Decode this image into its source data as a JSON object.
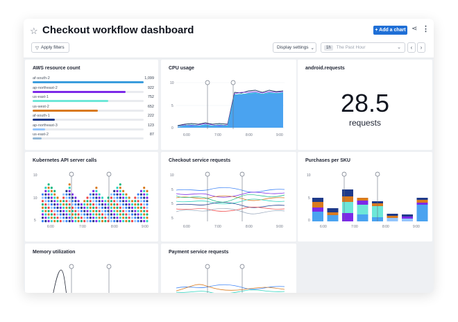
{
  "header": {
    "title": "Checkout workflow dashboard",
    "add_chart_label": "+ Add a chart",
    "apply_filters_label": "Apply filters",
    "display_settings_label": "Display settings",
    "time_badge": "1h",
    "time_range": "The Past Hour"
  },
  "icons": [
    "star-icon",
    "share-icon",
    "more-icon",
    "filter-icon",
    "chevron-down-icon",
    "chevron-left-icon",
    "chevron-right-icon"
  ],
  "aws": {
    "title": "AWS resource count",
    "items": [
      {
        "name": "af-south-2",
        "value": "1,099",
        "color": "#3b9ddd",
        "frac": 1.0
      },
      {
        "name": "ap-northeast-2",
        "value": "922",
        "color": "#7c2ae8",
        "frac": 0.84
      },
      {
        "name": "us-east-1",
        "value": "752",
        "color": "#6ee7d8",
        "frac": 0.68
      },
      {
        "name": "us-west-2",
        "value": "652",
        "color": "#d97a1e",
        "frac": 0.59
      },
      {
        "name": "af-south-1",
        "value": "222",
        "color": "#1e3a8a",
        "frac": 0.2
      },
      {
        "name": "ap-northeast-3",
        "value": "123",
        "color": "#93c5fd",
        "frac": 0.11
      },
      {
        "name": "us-east-2",
        "value": "87",
        "color": "#94b8d6",
        "frac": 0.08
      }
    ]
  },
  "cpu": {
    "title": "CPU usage",
    "yticks": [
      "10",
      "5",
      "0"
    ],
    "xticks": [
      "6:00",
      "7:00",
      "8:00",
      "9:00"
    ]
  },
  "android": {
    "title": "android.requests",
    "value": "28.5",
    "unit": "requests"
  },
  "k8s": {
    "title": "Kubernetes API server calls",
    "yticks": [
      "10",
      "10",
      "5"
    ],
    "xticks": [
      "6:00",
      "7:00",
      "8:00",
      "9:00"
    ]
  },
  "checkout": {
    "title": "Checkout service requests",
    "yticks": [
      "10",
      "5",
      "5",
      "5"
    ],
    "xticks": [
      "6:00",
      "7:00",
      "8:00",
      "9:00"
    ]
  },
  "purchases": {
    "title": "Purchases per SKU",
    "yticks": [
      "10",
      "5",
      "0"
    ],
    "xticks": [
      "6:00",
      "7:00",
      "8:00",
      "9:00"
    ]
  },
  "memory": {
    "title": "Memory utilization"
  },
  "payment": {
    "title": "Payment service requests"
  }
}
